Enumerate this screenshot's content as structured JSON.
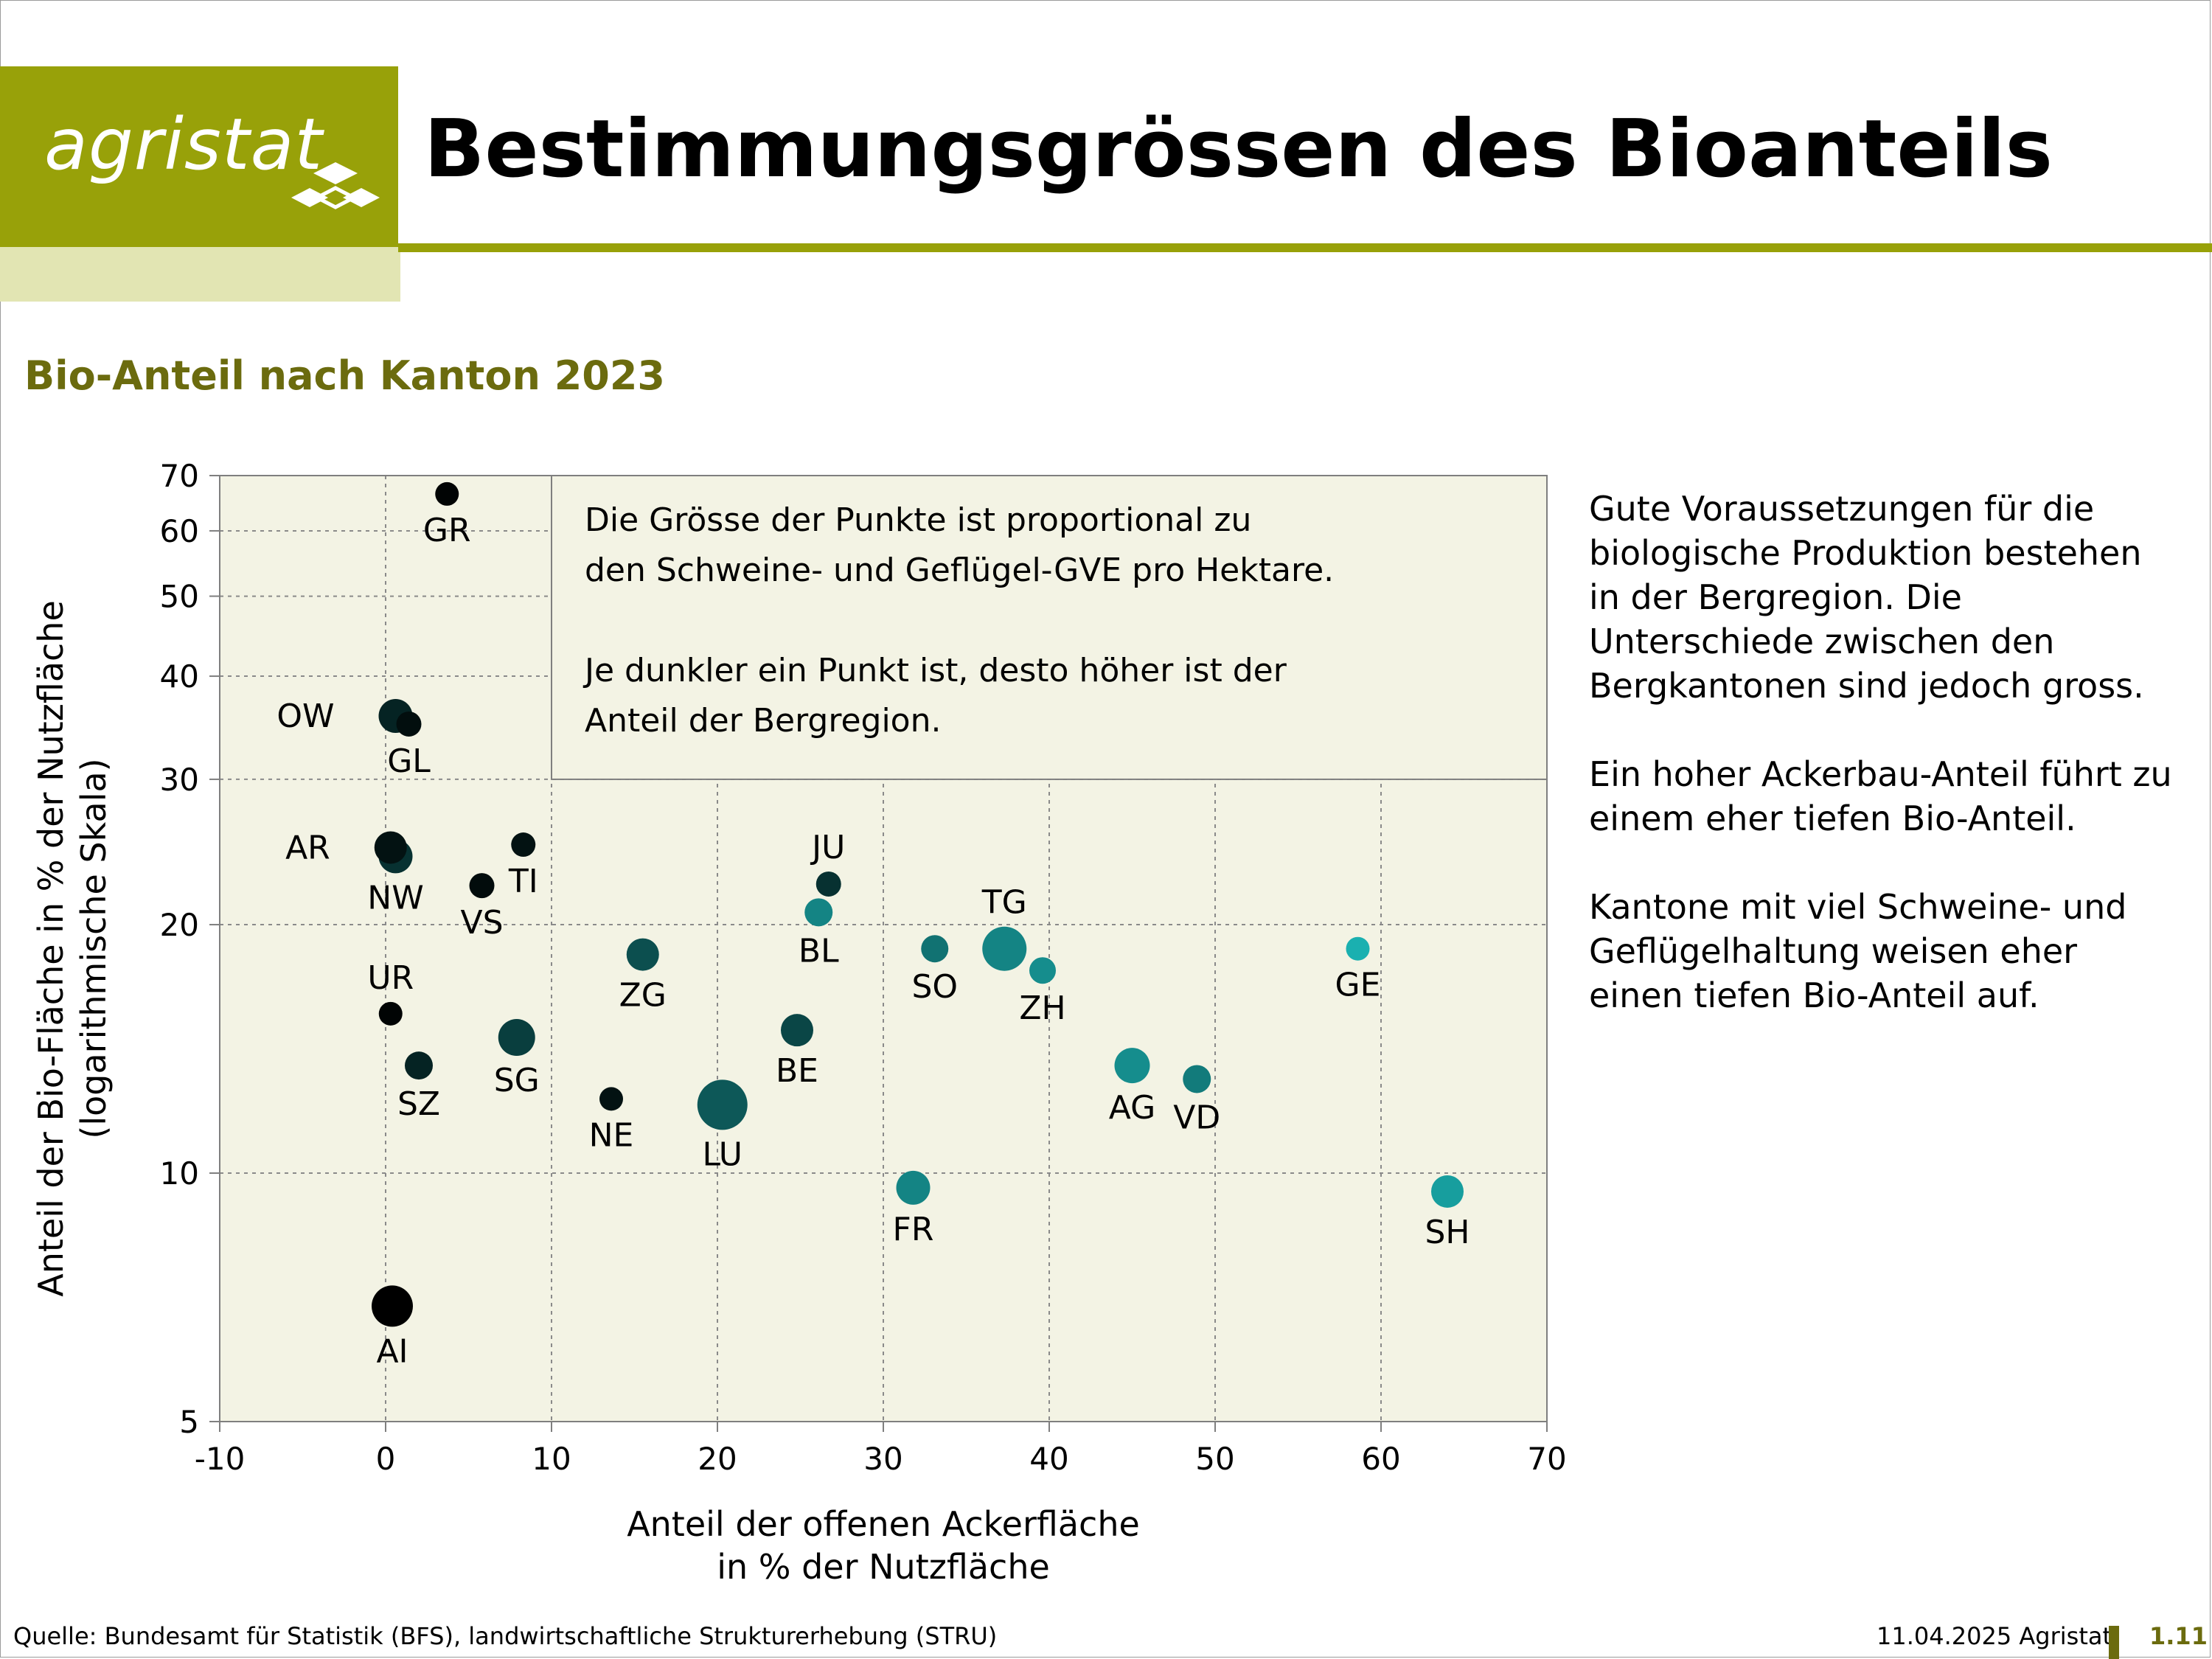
{
  "header": {
    "logo_text": "agristat",
    "title": "Bestimmungsgrössen des Bioanteils",
    "subtitle": "Bio-Anteil nach Kanton 2023"
  },
  "chart_data": {
    "type": "scatter",
    "title": "Bio-Anteil nach Kanton 2023",
    "xlabel": [
      "Anteil der offenen Ackerfläche",
      "in % der Nutzfläche"
    ],
    "ylabel": [
      "Anteil der Bio-Fläche in % der Nutzfläche",
      "(logarithmische Skala)"
    ],
    "xlim": [
      -10,
      70
    ],
    "ylim": [
      5,
      70
    ],
    "yscale": "log",
    "xticks": [
      -10,
      0,
      10,
      20,
      30,
      40,
      50,
      60,
      70
    ],
    "yticks": [
      5,
      10,
      20,
      30,
      40,
      50,
      60,
      70
    ],
    "grid": true,
    "annotation": [
      "Die Grösse der Punkte ist proportional zu",
      "den Schweine- und Geflügel-GVE pro Hektare.",
      "",
      "Je dunkler ein Punkt ist, desto höher ist der",
      "Anteil der Bergregion."
    ],
    "points": [
      {
        "label": "GR",
        "x": 3.7,
        "y": 66.5,
        "size": 0.6,
        "mountain": 0.98,
        "label_pos": "below"
      },
      {
        "label": "OW",
        "x": 0.6,
        "y": 35.8,
        "size": 1.3,
        "mountain": 0.8,
        "label_pos": "left"
      },
      {
        "label": "GL",
        "x": 1.4,
        "y": 35.0,
        "size": 0.7,
        "mountain": 0.92,
        "label_pos": "below"
      },
      {
        "label": "AR",
        "x": 0.3,
        "y": 24.8,
        "size": 1.2,
        "mountain": 0.9,
        "label_pos": "left"
      },
      {
        "label": "NW",
        "x": 0.6,
        "y": 24.2,
        "size": 1.3,
        "mountain": 0.72,
        "label_pos": "below"
      },
      {
        "label": "TI",
        "x": 8.3,
        "y": 25.0,
        "size": 0.65,
        "mountain": 0.9,
        "label_pos": "below"
      },
      {
        "label": "VS",
        "x": 5.8,
        "y": 22.3,
        "size": 0.7,
        "mountain": 0.93,
        "label_pos": "below"
      },
      {
        "label": "JU",
        "x": 26.7,
        "y": 22.4,
        "size": 0.7,
        "mountain": 0.72,
        "label_pos": "above"
      },
      {
        "label": "BL",
        "x": 26.1,
        "y": 20.7,
        "size": 0.9,
        "mountain": 0.25,
        "label_pos": "below"
      },
      {
        "label": "TG",
        "x": 37.3,
        "y": 18.7,
        "size": 2.0,
        "mountain": 0.25,
        "label_pos": "above"
      },
      {
        "label": "SO",
        "x": 33.1,
        "y": 18.7,
        "size": 0.85,
        "mountain": 0.35,
        "label_pos": "below"
      },
      {
        "label": "ZH",
        "x": 39.6,
        "y": 17.6,
        "size": 0.8,
        "mountain": 0.2,
        "label_pos": "below"
      },
      {
        "label": "ZG",
        "x": 15.5,
        "y": 18.4,
        "size": 1.2,
        "mountain": 0.55,
        "label_pos": "below"
      },
      {
        "label": "GE",
        "x": 58.6,
        "y": 18.7,
        "size": 0.6,
        "mountain": 0.0,
        "label_pos": "below"
      },
      {
        "label": "UR",
        "x": 0.3,
        "y": 15.6,
        "size": 0.6,
        "mountain": 0.98,
        "label_pos": "above"
      },
      {
        "label": "SG",
        "x": 7.9,
        "y": 14.6,
        "size": 1.5,
        "mountain": 0.65,
        "label_pos": "below"
      },
      {
        "label": "BE",
        "x": 24.8,
        "y": 14.9,
        "size": 1.2,
        "mountain": 0.6,
        "label_pos": "below"
      },
      {
        "label": "SZ",
        "x": 2.0,
        "y": 13.5,
        "size": 0.9,
        "mountain": 0.8,
        "label_pos": "below"
      },
      {
        "label": "AG",
        "x": 45.0,
        "y": 13.5,
        "size": 1.4,
        "mountain": 0.2,
        "label_pos": "below"
      },
      {
        "label": "VD",
        "x": 48.9,
        "y": 13.0,
        "size": 0.9,
        "mountain": 0.3,
        "label_pos": "below"
      },
      {
        "label": "NE",
        "x": 13.6,
        "y": 12.3,
        "size": 0.6,
        "mountain": 0.9,
        "label_pos": "below"
      },
      {
        "label": "LU",
        "x": 20.3,
        "y": 12.1,
        "size": 2.4,
        "mountain": 0.5,
        "label_pos": "below"
      },
      {
        "label": "FR",
        "x": 31.8,
        "y": 9.6,
        "size": 1.3,
        "mountain": 0.25,
        "label_pos": "below"
      },
      {
        "label": "SH",
        "x": 64.0,
        "y": 9.5,
        "size": 1.2,
        "mountain": 0.1,
        "label_pos": "below"
      },
      {
        "label": "AI",
        "x": 0.4,
        "y": 6.9,
        "size": 1.8,
        "mountain": 1.0,
        "label_pos": "below"
      }
    ]
  },
  "side_text": [
    "Gute Voraussetzungen für die biologische Produktion bestehen in der Bergregion. Die Unterschiede zwischen den Bergkantonen sind jedoch gross.",
    "Ein hoher Ackerbau-Anteil führt zu einem eher tiefen Bio-Anteil.",
    "Kantone mit viel Schweine- und Geflügelhaltung weisen eher einen tiefen Bio-Anteil auf."
  ],
  "footer": {
    "source": "Quelle: Bundesamt für Statistik (BFS), landwirtschaftliche Strukturerhebung (STRU)",
    "date": "11.04.2025 Agristat",
    "page": "1.11"
  },
  "colors": {
    "brand_green": "#98a109",
    "brand_light": "#e2e5b3",
    "subtitle": "#6b6b0e",
    "plot_bg": "#f3f3e4",
    "point_light": "#1ab0b0",
    "point_dark": "#000000"
  }
}
